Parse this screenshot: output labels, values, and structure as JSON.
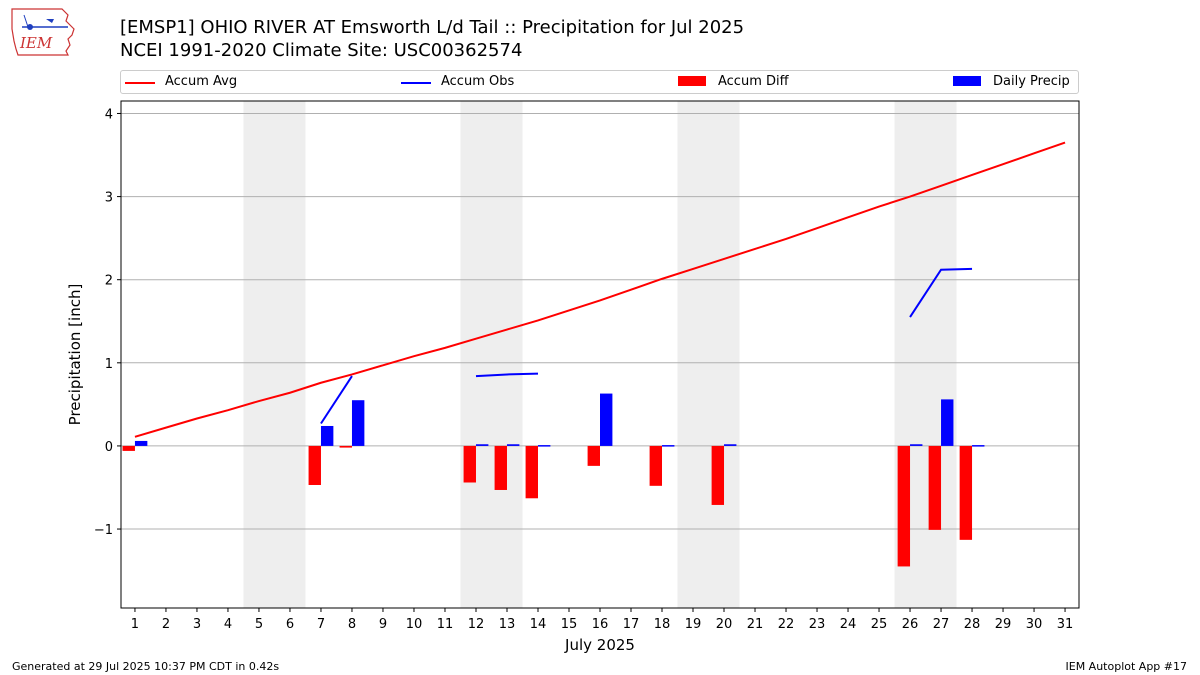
{
  "header": {
    "title_line1": "[EMSP1] OHIO RIVER  AT Emsworth L/d Tail :: Precipitation for Jul 2025",
    "title_line2": "NCEI 1991-2020 Climate Site: USC00362574",
    "logo_text": "IEM"
  },
  "footer": {
    "generated": "Generated at 29 Jul 2025 10:37 PM CDT in 0.42s",
    "app": "IEM Autoplot App #17"
  },
  "colors": {
    "accum_avg": "#ff0000",
    "accum_obs": "#0000ff",
    "accum_diff": "#ff0000",
    "daily_precip": "#0000ff",
    "weekend_shade": "#eeeeee",
    "grid": "#b0b0b0"
  },
  "chart_data": {
    "type": "bar",
    "xlabel": "July 2025",
    "ylabel": "Precipitation [inch]",
    "ylim": [
      -1.95,
      4.15
    ],
    "yticks": [
      -1,
      0,
      1,
      2,
      3,
      4
    ],
    "ytick_labels": [
      "−1",
      "0",
      "1",
      "2",
      "3",
      "4"
    ],
    "x": [
      1,
      2,
      3,
      4,
      5,
      6,
      7,
      8,
      9,
      10,
      11,
      12,
      13,
      14,
      15,
      16,
      17,
      18,
      19,
      20,
      21,
      22,
      23,
      24,
      25,
      26,
      27,
      28,
      29,
      30,
      31
    ],
    "xtick_labels": [
      "1",
      "2",
      "3",
      "4",
      "5",
      "6",
      "7",
      "8",
      "9",
      "10",
      "11",
      "12",
      "13",
      "14",
      "15",
      "16",
      "17",
      "18",
      "19",
      "20",
      "21",
      "22",
      "23",
      "24",
      "25",
      "26",
      "27",
      "28",
      "29",
      "30",
      "31"
    ],
    "grid": "horizontal",
    "legend_position": "top",
    "weekend_bands": [
      [
        5,
        6
      ],
      [
        12,
        13
      ],
      [
        19,
        20
      ],
      [
        26,
        27
      ]
    ],
    "legend": [
      "Accum Avg",
      "Accum Obs",
      "Accum Diff",
      "Daily Precip"
    ],
    "series": [
      {
        "name": "Accum Avg",
        "type": "line",
        "x": [
          1,
          2,
          3,
          4,
          5,
          6,
          7,
          8,
          9,
          10,
          11,
          12,
          13,
          14,
          15,
          16,
          17,
          18,
          19,
          20,
          21,
          22,
          23,
          24,
          25,
          26,
          27,
          28,
          29,
          30,
          31
        ],
        "values": [
          0.11,
          0.22,
          0.33,
          0.43,
          0.54,
          0.64,
          0.76,
          0.86,
          0.97,
          1.08,
          1.18,
          1.29,
          1.4,
          1.51,
          1.63,
          1.75,
          1.88,
          2.01,
          2.13,
          2.25,
          2.37,
          2.49,
          2.62,
          2.75,
          2.88,
          3.0,
          3.13,
          3.26,
          3.39,
          3.52,
          3.65
        ]
      },
      {
        "name": "Accum Obs",
        "type": "line",
        "segments": [
          {
            "x": [
              7,
              8
            ],
            "values": [
              0.27,
              0.84
            ]
          },
          {
            "x": [
              12,
              13,
              14
            ],
            "values": [
              0.84,
              0.86,
              0.87
            ]
          },
          {
            "x": [
              26,
              27,
              28
            ],
            "values": [
              1.55,
              2.12,
              2.13
            ]
          }
        ]
      },
      {
        "name": "Accum Diff",
        "type": "bar",
        "x": [
          1,
          7,
          8,
          12,
          13,
          14,
          16,
          18,
          20,
          26,
          27,
          28
        ],
        "values": [
          -0.06,
          -0.47,
          -0.02,
          -0.44,
          -0.53,
          -0.63,
          -0.24,
          -0.48,
          -0.71,
          -1.45,
          -1.01,
          -1.13
        ]
      },
      {
        "name": "Daily Precip",
        "type": "bar",
        "x": [
          1,
          7,
          8,
          12,
          13,
          14,
          16,
          18,
          20,
          26,
          27,
          28
        ],
        "values": [
          0.06,
          0.24,
          0.55,
          0.02,
          0.02,
          0.01,
          0.63,
          0.01,
          0.02,
          0.02,
          0.56,
          0.01
        ]
      }
    ]
  }
}
